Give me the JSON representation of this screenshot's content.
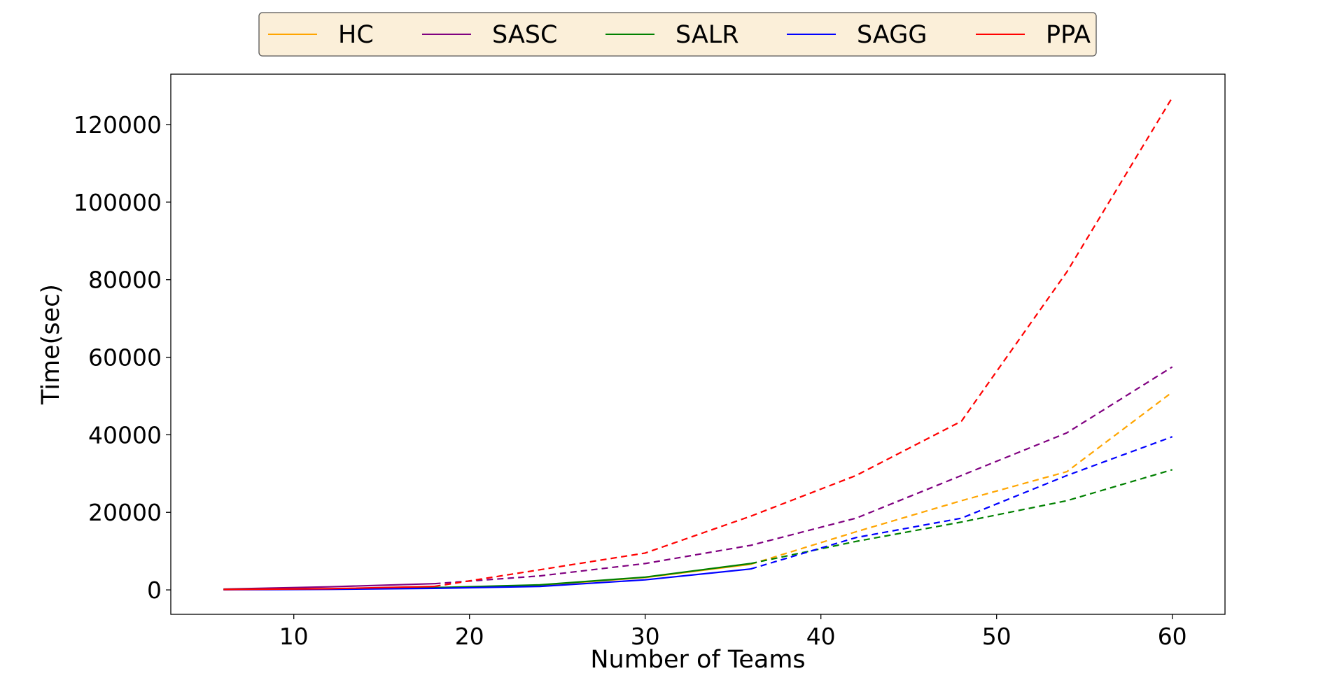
{
  "chart_data": {
    "type": "line",
    "title": "",
    "xlabel": "Number of Teams",
    "ylabel": "Time(sec)",
    "xlim": [
      3,
      63
    ],
    "ylim": [
      -6300,
      133000
    ],
    "xticks": [
      10,
      20,
      30,
      40,
      50,
      60
    ],
    "yticks": [
      0,
      20000,
      40000,
      60000,
      80000,
      100000,
      120000
    ],
    "legend": {
      "placement": "top-center, outside plot",
      "background": "#fbefd9",
      "border": "#555555"
    },
    "grid": false,
    "series": [
      {
        "name": "HC",
        "color": "#ffa500",
        "solid": {
          "x": [
            6,
            12,
            18,
            24,
            30,
            36
          ],
          "y": [
            100,
            250,
            500,
            1200,
            3200,
            6600
          ]
        },
        "dashed": {
          "x": [
            36,
            42,
            48,
            54,
            60
          ],
          "y": [
            6600,
            15000,
            23000,
            30500,
            51000
          ]
        }
      },
      {
        "name": "SASC",
        "color": "#800080",
        "solid": {
          "x": [
            6,
            12,
            18
          ],
          "y": [
            200,
            800,
            1600
          ]
        },
        "dashed": {
          "x": [
            18,
            24,
            30,
            36,
            42,
            48,
            54,
            60
          ],
          "y": [
            1600,
            3600,
            6800,
            11500,
            18500,
            29500,
            40500,
            57500
          ]
        }
      },
      {
        "name": "SALR",
        "color": "#008000",
        "solid": {
          "x": [
            6,
            12,
            18,
            24,
            30,
            36
          ],
          "y": [
            100,
            250,
            600,
            1300,
            3300,
            6800
          ]
        },
        "dashed": {
          "x": [
            36,
            42,
            48,
            54,
            60
          ],
          "y": [
            6800,
            12500,
            17500,
            23000,
            31000
          ]
        }
      },
      {
        "name": "SAGG",
        "color": "#0000ff",
        "solid": {
          "x": [
            6,
            12,
            18,
            24,
            30,
            36
          ],
          "y": [
            50,
            150,
            400,
            900,
            2600,
            5400
          ]
        },
        "dashed": {
          "x": [
            36,
            42,
            48,
            54,
            60
          ],
          "y": [
            5400,
            13500,
            18500,
            29500,
            39500
          ]
        }
      },
      {
        "name": "PPA",
        "color": "#ff0000",
        "solid": {
          "x": [
            6,
            12,
            18
          ],
          "y": [
            100,
            300,
            900
          ]
        },
        "dashed": {
          "x": [
            18,
            24,
            30,
            36,
            42,
            48,
            54,
            60
          ],
          "y": [
            900,
            5200,
            9500,
            19000,
            29500,
            43500,
            82000,
            127000
          ]
        }
      }
    ]
  }
}
